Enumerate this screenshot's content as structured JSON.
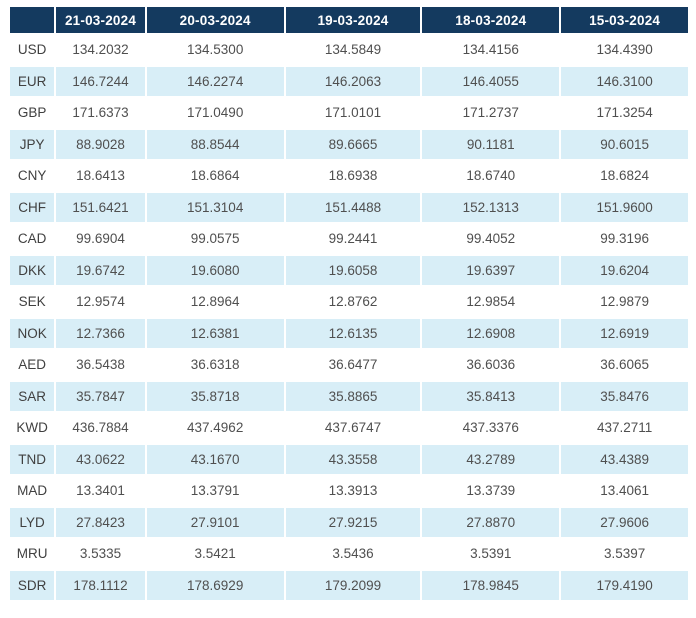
{
  "colors": {
    "header_bg": "#143a5f",
    "header_text": "#ffffff",
    "row_alt_bg": "#d8eef7",
    "row_bg": "#ffffff",
    "body_text": "#4f4f4f"
  },
  "table": {
    "corner_label": "",
    "columns": [
      "21-03-2024",
      "20-03-2024",
      "19-03-2024",
      "18-03-2024",
      "15-03-2024"
    ],
    "rows": [
      {
        "code": "USD",
        "values": [
          "134.2032",
          "134.5300",
          "134.5849",
          "134.4156",
          "134.4390"
        ]
      },
      {
        "code": "EUR",
        "values": [
          "146.7244",
          "146.2274",
          "146.2063",
          "146.4055",
          "146.3100"
        ]
      },
      {
        "code": "GBP",
        "values": [
          "171.6373",
          "171.0490",
          "171.0101",
          "171.2737",
          "171.3254"
        ]
      },
      {
        "code": "JPY",
        "values": [
          "88.9028",
          "88.8544",
          "89.6665",
          "90.1181",
          "90.6015"
        ]
      },
      {
        "code": "CNY",
        "values": [
          "18.6413",
          "18.6864",
          "18.6938",
          "18.6740",
          "18.6824"
        ]
      },
      {
        "code": "CHF",
        "values": [
          "151.6421",
          "151.3104",
          "151.4488",
          "152.1313",
          "151.9600"
        ]
      },
      {
        "code": "CAD",
        "values": [
          "99.6904",
          "99.0575",
          "99.2441",
          "99.4052",
          "99.3196"
        ]
      },
      {
        "code": "DKK",
        "values": [
          "19.6742",
          "19.6080",
          "19.6058",
          "19.6397",
          "19.6204"
        ]
      },
      {
        "code": "SEK",
        "values": [
          "12.9574",
          "12.8964",
          "12.8762",
          "12.9854",
          "12.9879"
        ]
      },
      {
        "code": "NOK",
        "values": [
          "12.7366",
          "12.6381",
          "12.6135",
          "12.6908",
          "12.6919"
        ]
      },
      {
        "code": "AED",
        "values": [
          "36.5438",
          "36.6318",
          "36.6477",
          "36.6036",
          "36.6065"
        ]
      },
      {
        "code": "SAR",
        "values": [
          "35.7847",
          "35.8718",
          "35.8865",
          "35.8413",
          "35.8476"
        ]
      },
      {
        "code": "KWD",
        "values": [
          "436.7884",
          "437.4962",
          "437.6747",
          "437.3376",
          "437.2711"
        ]
      },
      {
        "code": "TND",
        "values": [
          "43.0622",
          "43.1670",
          "43.3558",
          "43.2789",
          "43.4389"
        ]
      },
      {
        "code": "MAD",
        "values": [
          "13.3401",
          "13.3791",
          "13.3913",
          "13.3739",
          "13.4061"
        ]
      },
      {
        "code": "LYD",
        "values": [
          "27.8423",
          "27.9101",
          "27.9215",
          "27.8870",
          "27.9606"
        ]
      },
      {
        "code": "MRU",
        "values": [
          "3.5335",
          "3.5421",
          "3.5436",
          "3.5391",
          "3.5397"
        ]
      },
      {
        "code": "SDR",
        "values": [
          "178.1112",
          "178.6929",
          "179.2099",
          "178.9845",
          "179.4190"
        ]
      }
    ]
  }
}
